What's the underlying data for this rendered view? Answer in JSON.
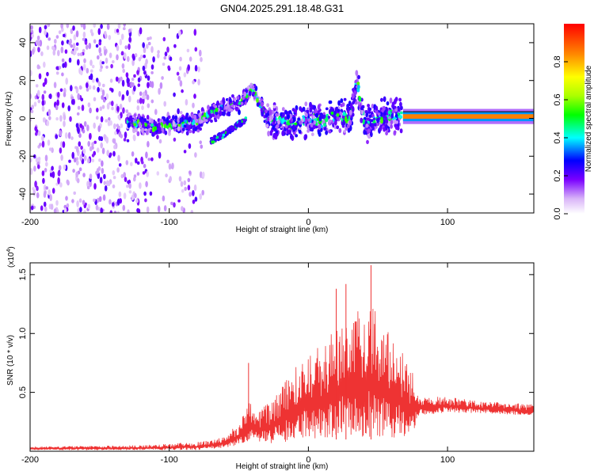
{
  "title": "GN04.2025.291.18.48.G31",
  "chart_data": [
    {
      "type": "heatmap",
      "name": "spectrogram",
      "xlabel": "Height of straight line (km)",
      "ylabel": "Frequency (Hz)",
      "xlim": [
        -200,
        162
      ],
      "ylim": [
        -50,
        50
      ],
      "xticks": [
        -200,
        -100,
        0,
        100
      ],
      "yticks": [
        -40,
        -20,
        0,
        20,
        40
      ],
      "colorbar": {
        "label": "Normalized spectral amplitude",
        "range": [
          0,
          1
        ],
        "ticks": [
          0.0,
          0.2,
          0.4,
          0.6,
          0.8
        ]
      },
      "noise_region_x": [
        -200,
        -75
      ],
      "ridge": [
        {
          "x": -130,
          "y": -2
        },
        {
          "x": -120,
          "y": -3
        },
        {
          "x": -110,
          "y": -5
        },
        {
          "x": -100,
          "y": -4
        },
        {
          "x": -90,
          "y": -3
        },
        {
          "x": -80,
          "y": -2
        },
        {
          "x": -70,
          "y": 3
        },
        {
          "x": -60,
          "y": 6
        },
        {
          "x": -50,
          "y": 8
        },
        {
          "x": -45,
          "y": 12
        },
        {
          "x": -40,
          "y": 16
        },
        {
          "x": -30,
          "y": 0
        },
        {
          "x": -20,
          "y": -2
        },
        {
          "x": -10,
          "y": -3
        },
        {
          "x": 0,
          "y": 0
        },
        {
          "x": 10,
          "y": -2
        },
        {
          "x": 20,
          "y": 2
        },
        {
          "x": 30,
          "y": 0
        },
        {
          "x": 35,
          "y": 20
        },
        {
          "x": 40,
          "y": -3
        },
        {
          "x": 50,
          "y": 0
        },
        {
          "x": 60,
          "y": 2
        },
        {
          "x": 67,
          "y": 1
        }
      ],
      "branch": [
        {
          "x": -70,
          "y": -12
        },
        {
          "x": -60,
          "y": -8
        },
        {
          "x": -50,
          "y": -3
        },
        {
          "x": -45,
          "y": -1
        }
      ],
      "steady_band": {
        "x_start": 68,
        "x_end": 162,
        "y": 1,
        "value": 0.85
      }
    },
    {
      "type": "line",
      "name": "snr",
      "xlabel": "Height of straight line (km)",
      "ylabel": "SNR (10 * v/v)",
      "y_multiplier": "(x10",
      "y_multiplier_exp": "4",
      "y_multiplier_close": ")",
      "xlim": [
        -200,
        162
      ],
      "ylim": [
        0,
        1.6
      ],
      "xticks": [
        -200,
        -100,
        0,
        100
      ],
      "yticks": [
        0.5,
        1.0,
        1.5
      ],
      "color": "#ee3333",
      "envelope": [
        {
          "x": -200,
          "low": 0.01,
          "high": 0.04
        },
        {
          "x": -120,
          "low": 0.01,
          "high": 0.05
        },
        {
          "x": -80,
          "low": 0.01,
          "high": 0.08
        },
        {
          "x": -60,
          "low": 0.03,
          "high": 0.12
        },
        {
          "x": -50,
          "low": 0.05,
          "high": 0.25
        },
        {
          "x": -42,
          "low": 0.05,
          "high": 0.45
        },
        {
          "x": -38,
          "low": 0.1,
          "high": 0.3
        },
        {
          "x": -30,
          "low": 0.05,
          "high": 0.4
        },
        {
          "x": -20,
          "low": 0.08,
          "high": 0.55
        },
        {
          "x": -10,
          "low": 0.08,
          "high": 0.7
        },
        {
          "x": 0,
          "low": 0.1,
          "high": 0.85
        },
        {
          "x": 10,
          "low": 0.1,
          "high": 0.9
        },
        {
          "x": 20,
          "low": 0.12,
          "high": 1.05
        },
        {
          "x": 28,
          "low": 0.12,
          "high": 1.25
        },
        {
          "x": 35,
          "low": 0.12,
          "high": 1.2
        },
        {
          "x": 45,
          "low": 0.12,
          "high": 1.3
        },
        {
          "x": 55,
          "low": 0.12,
          "high": 1.05
        },
        {
          "x": 65,
          "low": 0.1,
          "high": 0.95
        },
        {
          "x": 75,
          "low": 0.08,
          "high": 0.7
        },
        {
          "x": 78,
          "low": 0.3,
          "high": 0.48
        },
        {
          "x": 100,
          "low": 0.33,
          "high": 0.46
        },
        {
          "x": 130,
          "low": 0.32,
          "high": 0.42
        },
        {
          "x": 162,
          "low": 0.3,
          "high": 0.4
        }
      ],
      "peaks": [
        {
          "x": -43,
          "y": 0.75
        },
        {
          "x": 20,
          "y": 1.38
        },
        {
          "x": 27,
          "y": 1.42
        },
        {
          "x": 45,
          "y": 1.58
        }
      ]
    }
  ]
}
